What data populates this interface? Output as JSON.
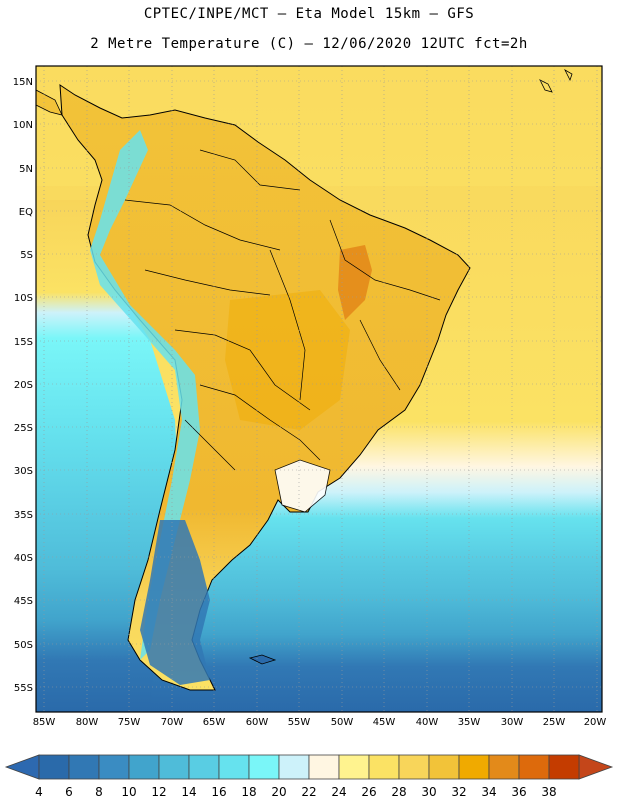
{
  "title_line1": "CPTEC/INPE/MCT –  Eta Model 15km – GFS",
  "title_line2": "2 Metre Temperature (C) – 12/06/2020 12UTC fct=2h",
  "lat_labels": [
    "15N",
    "10N",
    "5N",
    "EQ",
    "5S",
    "10S",
    "15S",
    "20S",
    "25S",
    "30S",
    "35S",
    "40S",
    "45S",
    "50S",
    "55S"
  ],
  "lon_labels": [
    "85W",
    "80W",
    "75W",
    "70W",
    "65W",
    "60W",
    "55W",
    "50W",
    "45W",
    "40W",
    "35W",
    "30W",
    "25W",
    "20W"
  ],
  "colorbar": {
    "labels": [
      "4",
      "6",
      "8",
      "10",
      "12",
      "14",
      "16",
      "18",
      "20",
      "22",
      "24",
      "26",
      "28",
      "30",
      "32",
      "34",
      "36",
      "38"
    ],
    "colors": [
      "#2a6aaa",
      "#3178b4",
      "#3a8cc2",
      "#41a4cc",
      "#4fbcd9",
      "#59cde3",
      "#66e2ee",
      "#7af6f8",
      "#cdf2fa",
      "#fff6e2",
      "#fff38f",
      "#fbe264",
      "#f8d55a",
      "#f2c339",
      "#f0aa00",
      "#e38a1a",
      "#dd6a0c",
      "#c43c00"
    ],
    "low_color": "#2d69b0",
    "high_color": "#c4461a"
  }
}
